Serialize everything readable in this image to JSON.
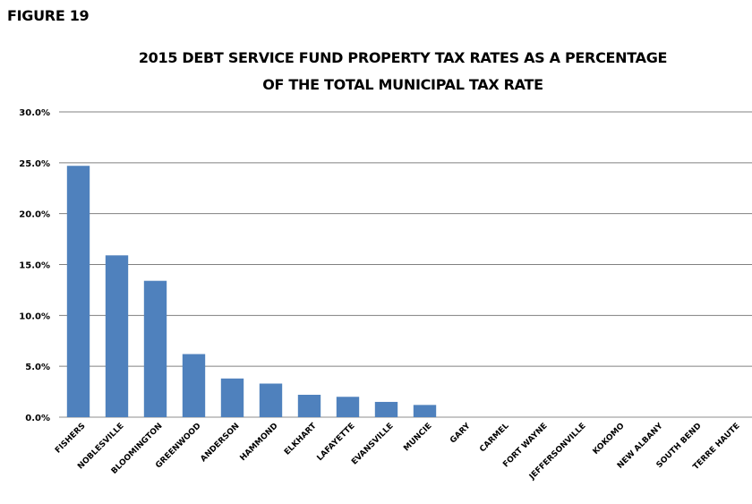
{
  "figure_label": "FIGURE 19",
  "chart_data": {
    "type": "bar",
    "title": "2015 DEBT SERVICE FUND PROPERTY TAX RATES AS A PERCENTAGE",
    "subtitle": "OF THE TOTAL MUNICIPAL  TAX RATE",
    "xlabel": "",
    "ylabel": "",
    "categories": [
      "FISHERS",
      "NOBLESVILLE",
      "BLOOMINGTON",
      "GREENWOOD",
      "ANDERSON",
      "HAMMOND",
      "ELKHART",
      "LAFAYETTE",
      "EVANSVILLE",
      "MUNCIE",
      "GARY",
      "CARMEL",
      "FORT WAYNE",
      "JEFFERSONVILLE",
      "KOKOMO",
      "NEW ALBANY",
      "SOUTH BEND",
      "TERRE HAUTE"
    ],
    "values": [
      24.7,
      15.9,
      13.4,
      6.2,
      3.8,
      3.3,
      2.2,
      2.0,
      1.5,
      1.2,
      0,
      0,
      0,
      0,
      0,
      0,
      0,
      0
    ],
    "ylim": [
      0,
      30
    ],
    "yticks": [
      0,
      5,
      10,
      15,
      20,
      25,
      30
    ],
    "ytick_labels": [
      "0.0%",
      "5.0%",
      "10.0%",
      "15.0%",
      "20.0%",
      "25.0%",
      "30.0%"
    ],
    "grid": true,
    "legend": "none",
    "bar_color": "#4F81BD"
  }
}
